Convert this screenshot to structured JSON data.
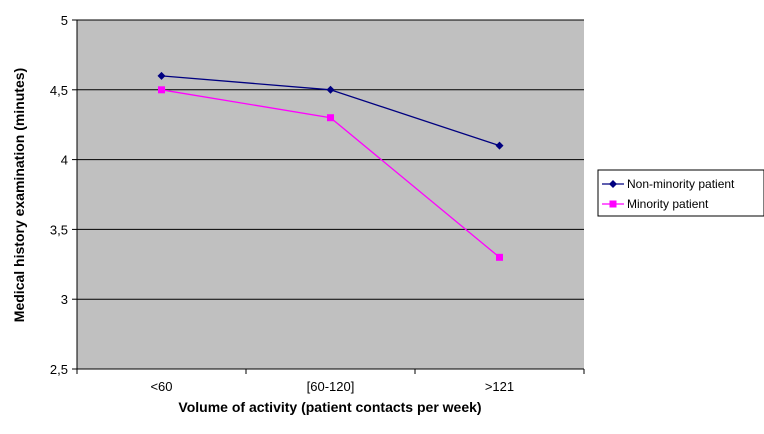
{
  "chart_data": {
    "type": "line",
    "title": "",
    "xlabel": "Volume of activity (patient contacts per week)",
    "ylabel": "Medical history examination (minutes)",
    "categories": [
      "<60",
      "[60-120]",
      ">121"
    ],
    "y_ticks": [
      "2,5",
      "3",
      "3,5",
      "4",
      "4,5",
      "5"
    ],
    "ylim": [
      2.5,
      5
    ],
    "y_tick_step": 0.5,
    "grid": true,
    "plot_background": "#c0c0c0",
    "legend_position": "right",
    "series": [
      {
        "name": "Non-minority patient",
        "values": [
          4.6,
          4.5,
          4.1
        ],
        "color": "#000080",
        "marker": "diamond"
      },
      {
        "name": "Minority patient",
        "values": [
          4.5,
          4.3,
          3.3
        ],
        "color": "#ff00ff",
        "marker": "square"
      }
    ]
  }
}
